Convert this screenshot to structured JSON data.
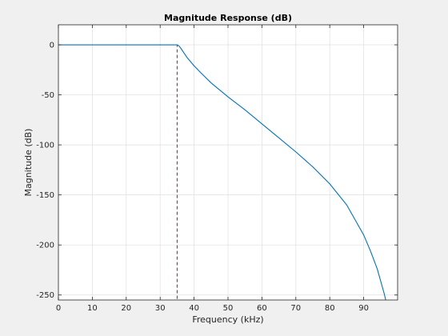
{
  "chart_data": {
    "type": "line",
    "title": "Magnitude Response (dB)",
    "xlabel": "Frequency (kHz)",
    "ylabel": "Magnitude (dB)",
    "xlim": [
      0,
      100
    ],
    "ylim": [
      -255,
      20
    ],
    "xticks": [
      0,
      10,
      20,
      30,
      40,
      50,
      60,
      70,
      80,
      90
    ],
    "xtick_labels": [
      "0",
      "10",
      "20",
      "30",
      "40",
      "50",
      "60",
      "70",
      "80",
      "90"
    ],
    "yticks": [
      0,
      -50,
      -100,
      -150,
      -200,
      -250
    ],
    "ytick_labels": [
      "0",
      "-50",
      "-100",
      "-150",
      "-200",
      "-250"
    ],
    "grid": true,
    "series": [
      {
        "color": "#0072bd",
        "x": [
          0,
          10,
          20,
          30,
          34,
          35,
          35.5,
          36,
          37,
          38,
          40,
          42,
          45,
          50,
          55,
          60,
          65,
          70,
          75,
          80,
          85,
          90,
          92,
          94,
          95,
          96,
          96.5
        ],
        "y": [
          0,
          0,
          0,
          0,
          0,
          0,
          -1,
          -3,
          -8,
          -13,
          -21,
          -28,
          -38,
          -52,
          -65,
          -79,
          -93,
          -107,
          -122,
          -139,
          -160,
          -190,
          -206,
          -224,
          -236,
          -248,
          -255
        ]
      }
    ],
    "reference_lines": [
      {
        "color": "#a2142f",
        "style": "dashed",
        "x": [
          0,
          35,
          35
        ],
        "y": [
          0,
          0,
          -255
        ]
      }
    ]
  }
}
